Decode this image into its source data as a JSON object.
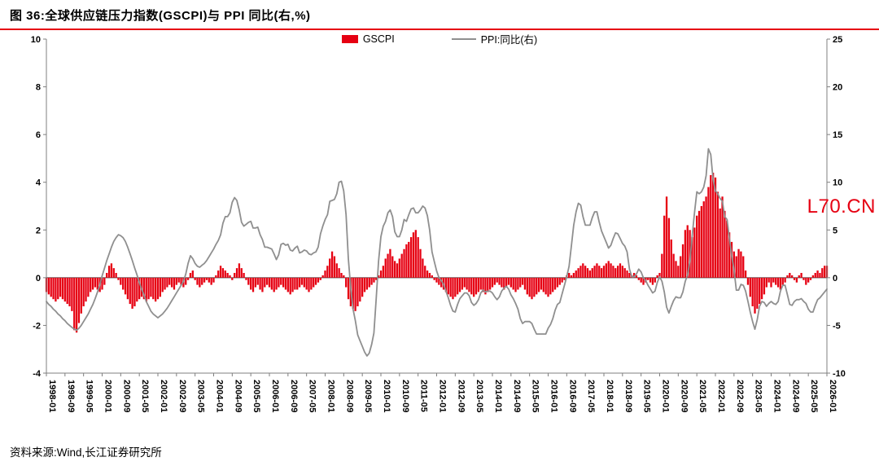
{
  "title": "图 36:全球供应链压力指数(GSCPI)与 PPI 同比(右,%)",
  "source": "资料来源:Wind,长江证券研究所",
  "watermark": "L70.CN",
  "colors": {
    "bar": "#e60012",
    "line": "#8f8f8f",
    "accent_rule": "#e60012",
    "axis": "#7f7f7f",
    "zero_line": "#404040"
  },
  "legend": [
    {
      "label": "GSCPI",
      "type": "bar",
      "color": "#e60012"
    },
    {
      "label": "PPI:同比(右)",
      "type": "line",
      "color": "#8f8f8f"
    }
  ],
  "chart_data": {
    "type": "bar",
    "subtype": "monthly bars (left axis) + line (right axis)",
    "x_start": "1998-01",
    "x_end": "2026-01",
    "x_tick_every": 8,
    "x_tick_labels": [
      "1998-01",
      "1998-09",
      "1999-05",
      "2000-01",
      "2000-09",
      "2001-05",
      "2002-01",
      "2002-09",
      "2003-05",
      "2004-01",
      "2004-09",
      "2005-05",
      "2006-01",
      "2006-09",
      "2007-05",
      "2008-01",
      "2008-09",
      "2009-05",
      "2010-01",
      "2010-09",
      "2011-05",
      "2012-01",
      "2012-09",
      "2013-05",
      "2014-01",
      "2014-09",
      "2015-05",
      "2016-01",
      "2016-09",
      "2017-05",
      "2018-01",
      "2018-09",
      "2019-05",
      "2020-01",
      "2020-09",
      "2021-05",
      "2022-01",
      "2022-09",
      "2023-05",
      "2024-01",
      "2024-09",
      "2025-05",
      "2026-01"
    ],
    "left_axis": {
      "ticks": [
        10,
        8,
        6,
        4,
        2,
        0,
        -2,
        -4
      ],
      "range": [
        -4,
        10
      ]
    },
    "right_axis": {
      "ticks": [
        25,
        20,
        15,
        10,
        5,
        0,
        -5,
        -10
      ],
      "range": [
        -10,
        25
      ]
    },
    "grid": false,
    "legend_position": "top-center",
    "series": [
      {
        "name": "GSCPI",
        "type": "bar",
        "axis": "left",
        "color": "#e60012",
        "values": [
          -0.6,
          -0.7,
          -0.8,
          -0.9,
          -1.0,
          -0.9,
          -0.8,
          -0.9,
          -1.0,
          -1.1,
          -1.2,
          -1.4,
          -2.2,
          -2.3,
          -1.9,
          -1.5,
          -1.2,
          -1.0,
          -0.8,
          -0.6,
          -0.5,
          -0.4,
          -0.5,
          -0.6,
          -0.5,
          -0.3,
          0.2,
          0.5,
          0.6,
          0.4,
          0.2,
          -0.1,
          -0.3,
          -0.5,
          -0.7,
          -0.9,
          -1.1,
          -1.3,
          -1.2,
          -1.0,
          -0.9,
          -0.8,
          -0.9,
          -1.0,
          -0.9,
          -0.8,
          -0.9,
          -1.0,
          -0.9,
          -0.8,
          -0.6,
          -0.5,
          -0.4,
          -0.3,
          -0.4,
          -0.5,
          -0.3,
          -0.2,
          -0.3,
          -0.4,
          -0.3,
          -0.1,
          0.2,
          0.3,
          -0.1,
          -0.3,
          -0.4,
          -0.3,
          -0.2,
          -0.1,
          -0.2,
          -0.3,
          -0.2,
          0.1,
          0.3,
          0.5,
          0.4,
          0.3,
          0.2,
          0.1,
          -0.1,
          0.2,
          0.4,
          0.6,
          0.4,
          0.2,
          -0.1,
          -0.3,
          -0.5,
          -0.6,
          -0.4,
          -0.3,
          -0.5,
          -0.6,
          -0.4,
          -0.3,
          -0.4,
          -0.5,
          -0.6,
          -0.5,
          -0.4,
          -0.3,
          -0.4,
          -0.5,
          -0.6,
          -0.7,
          -0.6,
          -0.5,
          -0.5,
          -0.4,
          -0.3,
          -0.4,
          -0.5,
          -0.6,
          -0.5,
          -0.4,
          -0.3,
          -0.2,
          -0.1,
          0.1,
          0.3,
          0.5,
          0.8,
          1.1,
          0.9,
          0.6,
          0.4,
          0.2,
          0.1,
          -0.4,
          -0.9,
          -1.2,
          -1.3,
          -1.4,
          -1.2,
          -1.0,
          -0.8,
          -0.6,
          -0.5,
          -0.4,
          -0.3,
          -0.2,
          -0.1,
          0.1,
          0.3,
          0.5,
          0.8,
          1.0,
          1.2,
          0.9,
          0.7,
          0.6,
          0.8,
          1.0,
          1.2,
          1.4,
          1.5,
          1.7,
          1.9,
          2.0,
          1.7,
          1.2,
          0.8,
          0.5,
          0.3,
          0.2,
          0.1,
          -0.1,
          -0.2,
          -0.3,
          -0.4,
          -0.5,
          -0.6,
          -0.7,
          -0.8,
          -0.9,
          -0.8,
          -0.7,
          -0.6,
          -0.5,
          -0.4,
          -0.5,
          -0.6,
          -0.7,
          -0.8,
          -0.7,
          -0.6,
          -0.5,
          -0.6,
          -0.7,
          -0.6,
          -0.5,
          -0.4,
          -0.3,
          -0.2,
          -0.3,
          -0.4,
          -0.5,
          -0.4,
          -0.3,
          -0.4,
          -0.5,
          -0.6,
          -0.5,
          -0.4,
          -0.3,
          -0.5,
          -0.7,
          -0.8,
          -0.9,
          -0.8,
          -0.7,
          -0.6,
          -0.5,
          -0.6,
          -0.7,
          -0.8,
          -0.7,
          -0.6,
          -0.5,
          -0.4,
          -0.3,
          -0.2,
          -0.1,
          0.1,
          0.2,
          0.1,
          0.2,
          0.3,
          0.4,
          0.5,
          0.6,
          0.5,
          0.4,
          0.3,
          0.4,
          0.5,
          0.6,
          0.5,
          0.4,
          0.5,
          0.6,
          0.7,
          0.6,
          0.5,
          0.4,
          0.5,
          0.6,
          0.5,
          0.4,
          0.3,
          0.2,
          0.1,
          0.2,
          0.1,
          -0.1,
          -0.2,
          -0.3,
          -0.2,
          -0.1,
          -0.2,
          -0.3,
          -0.2,
          0.1,
          0.2,
          1.0,
          2.6,
          3.4,
          2.5,
          1.6,
          1.0,
          0.7,
          0.5,
          0.9,
          1.4,
          2.0,
          2.2,
          2.0,
          1.7,
          2.1,
          2.6,
          2.8,
          3.0,
          3.2,
          3.4,
          3.8,
          4.3,
          4.4,
          4.2,
          3.6,
          2.9,
          3.4,
          2.8,
          2.4,
          1.9,
          1.5,
          1.1,
          0.9,
          1.2,
          1.1,
          0.9,
          0.3,
          -0.3,
          -0.8,
          -1.2,
          -1.5,
          -1.3,
          -1.1,
          -0.9,
          -0.7,
          -0.4,
          -0.2,
          -0.4,
          -0.2,
          -0.3,
          -0.4,
          -0.5,
          -0.3,
          -0.2,
          0.1,
          0.2,
          0.1,
          -0.1,
          -0.2,
          0.1,
          0.2,
          -0.1,
          -0.3,
          -0.2,
          -0.1,
          0.1,
          0.2,
          0.3,
          0.2,
          0.4,
          0.5,
          0.5
        ]
      },
      {
        "name": "PPI:同比(右)",
        "type": "line",
        "axis": "right",
        "color": "#8f8f8f",
        "values": [
          -2.5,
          -2.8,
          -3.0,
          -3.3,
          -3.5,
          -3.8,
          -4.0,
          -4.3,
          -4.5,
          -4.8,
          -5.0,
          -5.2,
          -5.4,
          -5.5,
          -5.3,
          -5.0,
          -4.6,
          -4.2,
          -3.8,
          -3.3,
          -2.8,
          -2.2,
          -1.5,
          -0.8,
          0.2,
          1.0,
          1.8,
          2.5,
          3.2,
          3.8,
          4.2,
          4.5,
          4.4,
          4.2,
          3.8,
          3.2,
          2.5,
          1.8,
          1.0,
          0.3,
          -0.5,
          -1.2,
          -1.8,
          -2.5,
          -3.0,
          -3.5,
          -3.8,
          -4.0,
          -4.2,
          -4.0,
          -3.8,
          -3.5,
          -3.2,
          -2.8,
          -2.4,
          -2.0,
          -1.6,
          -1.2,
          -0.8,
          -0.4,
          0.4,
          1.5,
          2.3,
          2.0,
          1.5,
          1.2,
          1.1,
          1.3,
          1.5,
          1.8,
          2.2,
          2.6,
          3.0,
          3.5,
          3.9,
          4.5,
          5.7,
          6.4,
          6.4,
          6.8,
          7.9,
          8.4,
          8.1,
          7.1,
          5.8,
          5.4,
          5.6,
          5.8,
          5.9,
          5.2,
          5.2,
          5.3,
          4.5,
          4.0,
          3.2,
          3.2,
          3.1,
          3.0,
          2.5,
          1.9,
          2.4,
          3.5,
          3.6,
          3.4,
          3.5,
          2.9,
          2.8,
          3.1,
          3.3,
          2.6,
          2.7,
          2.9,
          2.8,
          2.5,
          2.4,
          2.6,
          2.7,
          3.2,
          4.6,
          5.4,
          6.1,
          6.6,
          8.0,
          8.1,
          8.2,
          8.8,
          10.0,
          10.1,
          9.1,
          6.6,
          2.0,
          -1.1,
          -3.3,
          -4.5,
          -6.0,
          -6.6,
          -7.2,
          -7.8,
          -8.2,
          -7.9,
          -7.0,
          -5.8,
          -2.1,
          1.7,
          4.3,
          5.4,
          5.9,
          6.8,
          7.1,
          6.4,
          4.8,
          4.3,
          4.3,
          5.0,
          6.1,
          5.9,
          6.6,
          7.2,
          7.3,
          6.8,
          6.8,
          7.1,
          7.5,
          7.3,
          6.5,
          5.0,
          2.7,
          1.7,
          0.7,
          0.0,
          -0.3,
          -0.7,
          -1.4,
          -2.1,
          -2.9,
          -3.5,
          -3.6,
          -2.8,
          -2.2,
          -1.9,
          -1.6,
          -1.6,
          -1.9,
          -2.6,
          -2.9,
          -2.7,
          -2.3,
          -1.6,
          -1.3,
          -1.5,
          -1.4,
          -1.4,
          -1.6,
          -2.0,
          -2.3,
          -2.0,
          -1.4,
          -1.1,
          -0.9,
          -1.2,
          -1.8,
          -2.2,
          -2.7,
          -3.3,
          -4.3,
          -4.8,
          -4.6,
          -4.6,
          -4.6,
          -4.8,
          -5.4,
          -5.9,
          -5.9,
          -5.9,
          -5.9,
          -5.9,
          -5.3,
          -4.9,
          -4.3,
          -3.4,
          -2.8,
          -2.6,
          -1.7,
          -0.8,
          0.1,
          1.2,
          3.3,
          5.5,
          6.9,
          7.8,
          7.6,
          6.4,
          5.5,
          5.5,
          5.5,
          6.3,
          6.9,
          6.9,
          5.8,
          4.9,
          4.3,
          3.7,
          3.1,
          3.4,
          4.1,
          4.7,
          4.6,
          4.1,
          3.6,
          3.3,
          2.7,
          0.9,
          0.1,
          0.1,
          0.4,
          0.9,
          0.6,
          0.0,
          -0.3,
          -0.8,
          -1.2,
          -1.6,
          -1.4,
          -0.5,
          0.1,
          -0.4,
          -1.5,
          -3.1,
          -3.7,
          -3.0,
          -2.4,
          -2.0,
          -2.1,
          -2.1,
          -1.5,
          -0.4,
          0.3,
          1.7,
          4.4,
          6.8,
          9.0,
          8.8,
          9.0,
          9.5,
          10.7,
          13.5,
          12.9,
          10.3,
          9.1,
          8.8,
          8.3,
          8.0,
          6.4,
          6.1,
          4.2,
          2.3,
          0.9,
          -1.3,
          -1.3,
          -0.7,
          -0.8,
          -1.4,
          -2.5,
          -3.6,
          -4.6,
          -5.4,
          -4.4,
          -3.0,
          -2.5,
          -2.6,
          -3.0,
          -2.7,
          -2.5,
          -2.7,
          -2.8,
          -2.5,
          -1.4,
          -0.8,
          -0.8,
          -1.8,
          -2.8,
          -2.9,
          -2.5,
          -2.3,
          -2.3,
          -2.2,
          -2.5,
          -2.7,
          -3.3,
          -3.6,
          -3.6,
          -2.9,
          -2.3,
          -2.1,
          -1.8,
          -1.5,
          -1.2
        ]
      }
    ]
  }
}
